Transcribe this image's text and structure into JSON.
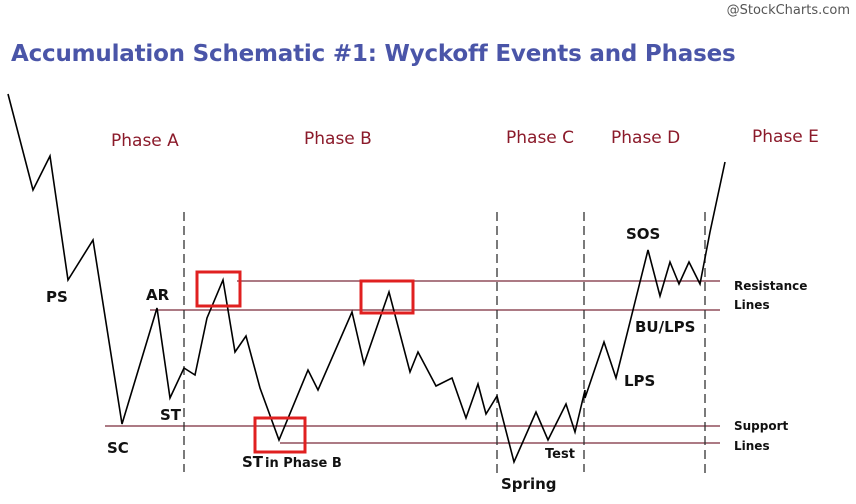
{
  "credit": "@StockCharts.com",
  "title": "Accumulation Schematic #1: Wyckoff Events and Phases",
  "phases": [
    "Phase A",
    "Phase B",
    "Phase C",
    "Phase D",
    "Phase E"
  ],
  "events": {
    "ps": "PS",
    "sc": "SC",
    "ar": "AR",
    "st": "ST",
    "st_phase_b_main": "ST",
    "st_phase_b_sub": "in Phase B",
    "spring": "Spring",
    "test": "Test",
    "lps": "LPS",
    "bu_lps": "BU/LPS",
    "sos": "SOS"
  },
  "line_labels": {
    "resistance_1": "Resistance",
    "resistance_2": "Lines",
    "support_1": "Support",
    "support_2": "Lines"
  },
  "colors": {
    "title": "#4a55a8",
    "phase": "#8b1a2a",
    "level_line": "#7a2a3a",
    "highlight_box": "#e02020",
    "price_line": "#000000"
  }
}
